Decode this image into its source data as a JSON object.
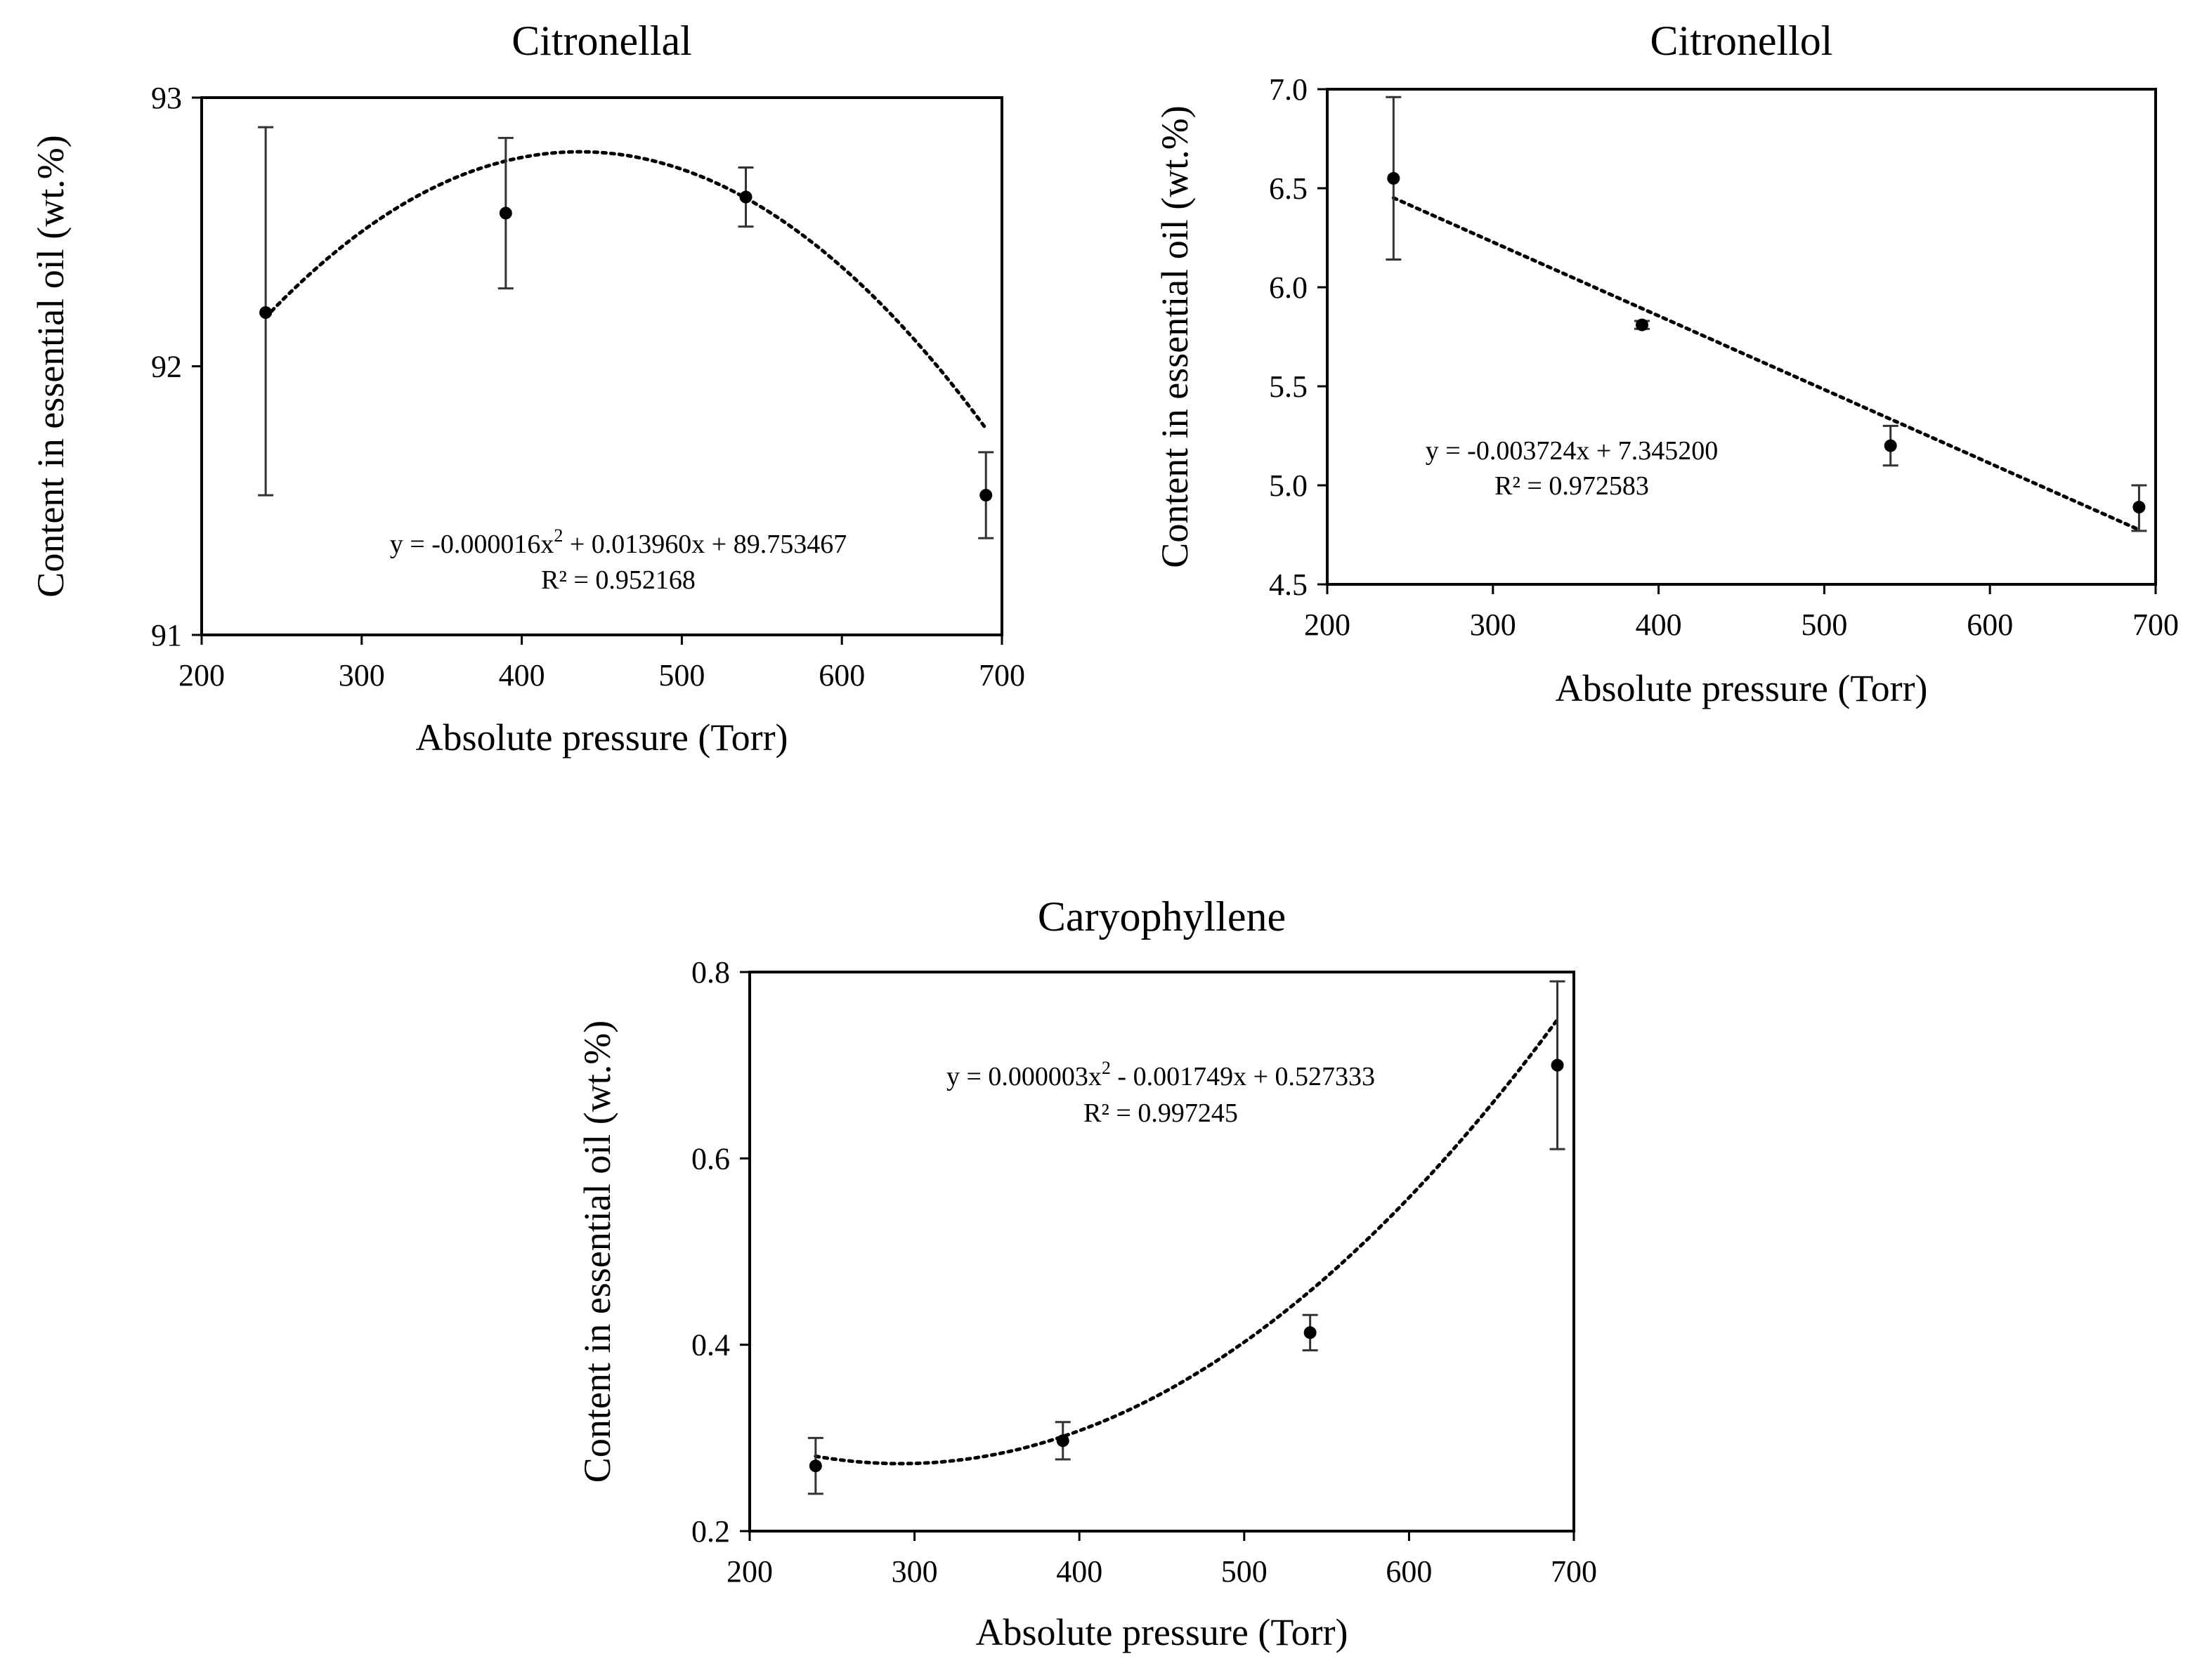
{
  "chart_data": [
    {
      "type": "scatter",
      "title": "Citronellal",
      "xlabel": "Absolute pressure (Torr)",
      "ylabel": "Content in essential oil (wt.%)",
      "xlim": [
        200,
        700
      ],
      "ylim": [
        91,
        93
      ],
      "xticks": [
        "200",
        "300",
        "400",
        "500",
        "600",
        "700"
      ],
      "yticks": [
        "91",
        "92",
        "93"
      ],
      "series": [
        {
          "name": "Citronellal",
          "x": [
            240,
            390,
            540,
            690
          ],
          "y": [
            92.2,
            92.57,
            92.63,
            91.52
          ],
          "err_low": [
            91.52,
            92.29,
            92.52,
            91.36
          ],
          "err_high": [
            92.89,
            92.85,
            92.74,
            91.68
          ]
        }
      ],
      "trendline": {
        "kind": "poly2",
        "coeffs": [
          -1.6e-05,
          0.01396,
          89.753467
        ],
        "equation": "y = -0.000016x",
        "equation_sup": "2",
        "equation_rest": " + 0.013960x  + 89.753467",
        "r2": "R² = 0.952168"
      }
    },
    {
      "type": "scatter",
      "title": "Citronellol",
      "xlabel": "Absolute pressure (Torr)",
      "ylabel": "Content in essential oil (wt.%)",
      "xlim": [
        200,
        700
      ],
      "ylim": [
        4.5,
        7.0
      ],
      "xticks": [
        "200",
        "300",
        "400",
        "500",
        "600",
        "700"
      ],
      "yticks": [
        "4.5",
        "5.0",
        "5.5",
        "6.0",
        "6.5",
        "7.0"
      ],
      "series": [
        {
          "name": "Citronellol",
          "x": [
            240,
            390,
            540,
            690
          ],
          "y": [
            6.55,
            5.81,
            5.2,
            4.89
          ],
          "err_low": [
            6.14,
            5.79,
            5.1,
            4.77
          ],
          "err_high": [
            6.96,
            5.83,
            5.3,
            5.0
          ]
        }
      ],
      "trendline": {
        "kind": "linear",
        "coeffs": [
          -0.003724,
          7.3452
        ],
        "equation": "y = -0.003724x  + 7.345200",
        "r2": "R² = 0.972583"
      }
    },
    {
      "type": "scatter",
      "title": "Caryophyllene",
      "xlabel": "Absolute pressure (Torr)",
      "ylabel": "Content in essential oil (wt.%)",
      "xlim": [
        200,
        700
      ],
      "ylim": [
        0.2,
        0.8
      ],
      "xticks": [
        "200",
        "300",
        "400",
        "500",
        "600",
        "700"
      ],
      "yticks": [
        "0.2",
        "0.4",
        "0.6",
        "0.8"
      ],
      "series": [
        {
          "name": "Caryophyllene",
          "x": [
            240,
            390,
            540,
            690
          ],
          "y": [
            0.27,
            0.297,
            0.413,
            0.7
          ],
          "err_low": [
            0.24,
            0.277,
            0.394,
            0.61
          ],
          "err_high": [
            0.3,
            0.317,
            0.432,
            0.79
          ]
        }
      ],
      "trendline": {
        "kind": "poly2",
        "coeffs": [
          3e-06,
          -0.001749,
          0.527333
        ],
        "equation": "y = 0.000003x",
        "equation_sup": "2",
        "equation_rest": " - 0.001749x  + 0.527333",
        "r2": "R² = 0.997245"
      }
    }
  ]
}
